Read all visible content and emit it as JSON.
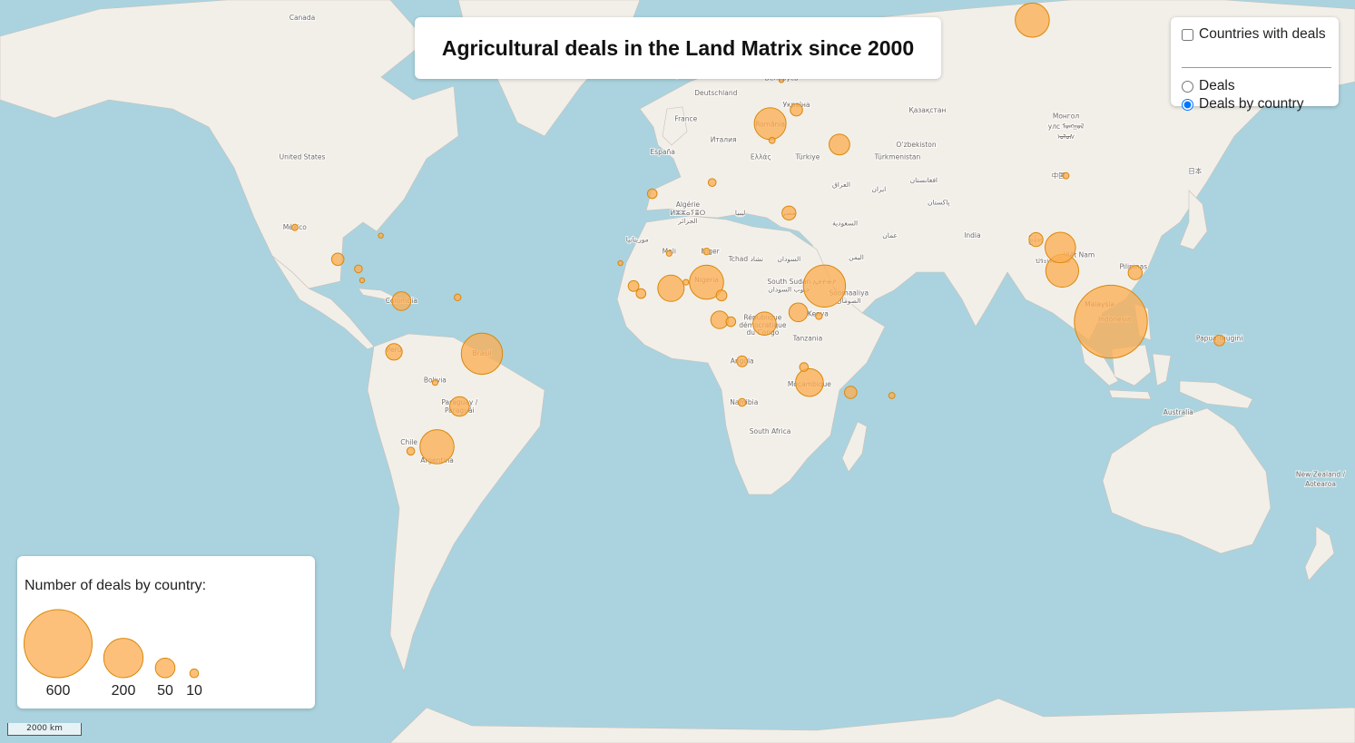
{
  "title": "Agricultural deals in the Land Matrix since 2000",
  "layer_control": {
    "overlay": {
      "label": "Countries with deals",
      "checked": false
    },
    "base_layers": [
      {
        "label": "Deals",
        "selected": false
      },
      {
        "label": "Deals by country",
        "selected": true
      }
    ]
  },
  "legend": {
    "title": "Number of deals by country:",
    "sizes": [
      {
        "value": 600
      },
      {
        "value": 200
      },
      {
        "value": 50
      },
      {
        "value": 10
      }
    ]
  },
  "scale_bar": {
    "label": "2000 km"
  },
  "colors": {
    "ocean": "#aad3df",
    "land": "#f2efe9",
    "bubble_fill": "#fdae55",
    "bubble_stroke": "#d9880a"
  },
  "basemap_labels": [
    {
      "text": "Canada",
      "lon": -100,
      "lat": 62
    },
    {
      "text": "United States",
      "lon": -100,
      "lat": 39
    },
    {
      "text": "México",
      "lon": -102,
      "lat": 23
    },
    {
      "text": "Colombia",
      "lon": -73.5,
      "lat": 4
    },
    {
      "text": "Perú",
      "lon": -75.5,
      "lat": -9
    },
    {
      "text": "Brasil",
      "lon": -52,
      "lat": -10
    },
    {
      "text": "Bolivia",
      "lon": -64.5,
      "lat": -17
    },
    {
      "text": "Paraguay /",
      "lon": -58,
      "lat": -22.5
    },
    {
      "text": "Paraguái",
      "lon": -58,
      "lat": -24.5
    },
    {
      "text": "Chile",
      "lon": -71.5,
      "lat": -32
    },
    {
      "text": "Argentina",
      "lon": -64,
      "lat": -36
    },
    {
      "text": "United Kingdom",
      "lon": -2.5,
      "lat": 54
    },
    {
      "text": "Беларусь",
      "lon": 28,
      "lat": 53.5
    },
    {
      "text": "Deutschland",
      "lon": 10.5,
      "lat": 51
    },
    {
      "text": "Україна",
      "lon": 32,
      "lat": 49
    },
    {
      "text": "France",
      "lon": 2.5,
      "lat": 46.5
    },
    {
      "text": "România",
      "lon": 25,
      "lat": 45.5
    },
    {
      "text": "Италия",
      "lon": 12.5,
      "lat": 42.5
    },
    {
      "text": "España",
      "lon": -3.7,
      "lat": 40
    },
    {
      "text": "Ελλάς",
      "lon": 22.5,
      "lat": 39
    },
    {
      "text": "Türkiye",
      "lon": 35,
      "lat": 39
    },
    {
      "text": "Қазақстан",
      "lon": 67,
      "lat": 48
    },
    {
      "text": "Монгол",
      "lon": 104,
      "lat": 47
    },
    {
      "text": "улс ᠮᠣᠩᠭᠣᠯ",
      "lon": 104,
      "lat": 45
    },
    {
      "text": "ᠤᠯᠤᠰ",
      "lon": 104,
      "lat": 43
    },
    {
      "text": "O‘zbekiston",
      "lon": 64,
      "lat": 41.5
    },
    {
      "text": "Türkmenistan",
      "lon": 59,
      "lat": 39
    },
    {
      "text": "中国",
      "lon": 102,
      "lat": 35
    },
    {
      "text": "日本",
      "lon": 138.5,
      "lat": 36
    },
    {
      "text": "افغانستان",
      "lon": 66,
      "lat": 34
    },
    {
      "text": "العراق",
      "lon": 44,
      "lat": 33
    },
    {
      "text": "ایران",
      "lon": 54,
      "lat": 32
    },
    {
      "text": "پاکستان",
      "lon": 70,
      "lat": 29
    },
    {
      "text": "Algérie",
      "lon": 3,
      "lat": 28.5
    },
    {
      "text": "ⵍⵣⵣⴰⵢⴻⵔ",
      "lon": 3,
      "lat": 26.5
    },
    {
      "text": "الجزائر",
      "lon": 3,
      "lat": 24.5
    },
    {
      "text": "ليبيا",
      "lon": 17,
      "lat": 26.5
    },
    {
      "text": "مصر",
      "lon": 30,
      "lat": 26.5
    },
    {
      "text": "السعودية",
      "lon": 45,
      "lat": 24
    },
    {
      "text": "India",
      "lon": 79,
      "lat": 21
    },
    {
      "text": "موريتانيا",
      "lon": -10.5,
      "lat": 20
    },
    {
      "text": "Mali",
      "lon": -2,
      "lat": 17
    },
    {
      "text": "Niger",
      "lon": 9,
      "lat": 17
    },
    {
      "text": "السودان",
      "lon": 30,
      "lat": 15
    },
    {
      "text": "Tchad تشاد",
      "lon": 18.5,
      "lat": 15
    },
    {
      "text": "عمان",
      "lon": 57,
      "lat": 21
    },
    {
      "text": "اليمن",
      "lon": 48,
      "lat": 15.5
    },
    {
      "text": "Nigeria",
      "lon": 8,
      "lat": 9.5
    },
    {
      "text": "South Sudan",
      "lon": 30,
      "lat": 9
    },
    {
      "text": "جنوب السودان",
      "lon": 30,
      "lat": 7
    },
    {
      "text": "ኢትዮጵያ",
      "lon": 39.5,
      "lat": 9
    },
    {
      "text": "Soomaaliya",
      "lon": 46,
      "lat": 6
    },
    {
      "text": "الصومال",
      "lon": 46,
      "lat": 4
    },
    {
      "text": "République",
      "lon": 23,
      "lat": -0.5
    },
    {
      "text": "démocratique",
      "lon": 23,
      "lat": -2.5
    },
    {
      "text": "du Congo",
      "lon": 23,
      "lat": -4.5
    },
    {
      "text": "Kenya",
      "lon": 37.8,
      "lat": 0.5
    },
    {
      "text": "Tanzania",
      "lon": 35,
      "lat": -6
    },
    {
      "text": "Angola",
      "lon": 17.5,
      "lat": -12
    },
    {
      "text": "Moçambique",
      "lon": 35.5,
      "lat": -18
    },
    {
      "text": "Namibia",
      "lon": 18,
      "lat": -22.5
    },
    {
      "text": "South Africa",
      "lon": 25,
      "lat": -29.5
    },
    {
      "text": "မြန်မာ",
      "lon": 96,
      "lat": 20
    },
    {
      "text": "Việt Nam",
      "lon": 107.5,
      "lat": 16
    },
    {
      "text": "ประเทศไทย",
      "lon": 100.5,
      "lat": 14.5
    },
    {
      "text": "Pilipinas",
      "lon": 122,
      "lat": 13
    },
    {
      "text": "Malaysia",
      "lon": 113,
      "lat": 3
    },
    {
      "text": "Indonesia",
      "lon": 117,
      "lat": -1
    },
    {
      "text": "Papua Niugini",
      "lon": 145,
      "lat": -6
    },
    {
      "text": "Australia",
      "lon": 134,
      "lat": -25
    },
    {
      "text": "New Zealand /",
      "lon": 172,
      "lat": -39
    },
    {
      "text": "Aotearoa",
      "lon": 172,
      "lat": -41
    }
  ],
  "deal_bubbles": [
    {
      "country": "Russia",
      "lon": 95,
      "lat": 62,
      "deals": 150
    },
    {
      "country": "Belarus",
      "lon": 28,
      "lat": 53.5,
      "deals": 3
    },
    {
      "country": "Romania",
      "lon": 25,
      "lat": 46,
      "deals": 130
    },
    {
      "country": "Ukraine",
      "lon": 32,
      "lat": 48.5,
      "deals": 20
    },
    {
      "country": "Bulgaria",
      "lon": 25.5,
      "lat": 42.8,
      "deals": 5
    },
    {
      "country": "Georgia",
      "lon": 43.5,
      "lat": 42,
      "deals": 55
    },
    {
      "country": "China",
      "lon": 104,
      "lat": 35.5,
      "deals": 5
    },
    {
      "country": "Mexico",
      "lon": -102,
      "lat": 23.5,
      "deals": 5
    },
    {
      "country": "Cuba",
      "lon": -79,
      "lat": 21.5,
      "deals": 3
    },
    {
      "country": "Guatemala",
      "lon": -90.5,
      "lat": 15.5,
      "deals": 20
    },
    {
      "country": "Nicaragua",
      "lon": -85,
      "lat": 13,
      "deals": 8
    },
    {
      "country": "Costa Rica",
      "lon": -84,
      "lat": 10,
      "deals": 3
    },
    {
      "country": "Colombia",
      "lon": -73.5,
      "lat": 4.5,
      "deals": 45
    },
    {
      "country": "Guyana",
      "lon": -58.5,
      "lat": 5.5,
      "deals": 6
    },
    {
      "country": "Peru",
      "lon": -75.5,
      "lat": -9,
      "deals": 35
    },
    {
      "country": "Brazil",
      "lon": -52,
      "lat": -9.5,
      "deals": 220
    },
    {
      "country": "Bolivia",
      "lon": -64.5,
      "lat": -17,
      "deals": 4
    },
    {
      "country": "Paraguay",
      "lon": -58,
      "lat": -23,
      "deals": 50
    },
    {
      "country": "Argentina",
      "lon": -64,
      "lat": -32.5,
      "deals": 150
    },
    {
      "country": "Chile",
      "lon": -71,
      "lat": -33.5,
      "deals": 8
    },
    {
      "country": "Morocco",
      "lon": -6.5,
      "lat": 31.5,
      "deals": 12
    },
    {
      "country": "Tunisia",
      "lon": 9.5,
      "lat": 34,
      "deals": 8
    },
    {
      "country": "Egypt",
      "lon": 30,
      "lat": 27,
      "deals": 25
    },
    {
      "country": "Senegal",
      "lon": -15,
      "lat": 14.5,
      "deals": 3
    },
    {
      "country": "Mali",
      "lon": -2,
      "lat": 17,
      "deals": 4
    },
    {
      "country": "Niger",
      "lon": 8,
      "lat": 17.5,
      "deals": 6
    },
    {
      "country": "Sierra Leone",
      "lon": -11.5,
      "lat": 8.5,
      "deals": 15
    },
    {
      "country": "Liberia",
      "lon": -9.5,
      "lat": 6.5,
      "deals": 12
    },
    {
      "country": "Ghana",
      "lon": -1.5,
      "lat": 7.9,
      "deals": 90
    },
    {
      "country": "Benin",
      "lon": 2.5,
      "lat": 9.5,
      "deals": 4
    },
    {
      "country": "Nigeria",
      "lon": 8,
      "lat": 9.5,
      "deals": 150
    },
    {
      "country": "Cameroon",
      "lon": 12,
      "lat": 6,
      "deals": 15
    },
    {
      "country": "Ethiopia",
      "lon": 39.5,
      "lat": 8.5,
      "deals": 230
    },
    {
      "country": "Gabon",
      "lon": 11.5,
      "lat": -0.5,
      "deals": 40
    },
    {
      "country": "Congo",
      "lon": 14.5,
      "lat": -1,
      "deals": 12
    },
    {
      "country": "DR Congo",
      "lon": 23.5,
      "lat": -1.5,
      "deals": 70
    },
    {
      "country": "Uganda",
      "lon": 32.5,
      "lat": 1.5,
      "deals": 45
    },
    {
      "country": "Kenya",
      "lon": 38,
      "lat": 0.5,
      "deals": 6
    },
    {
      "country": "Angola",
      "lon": 17.5,
      "lat": -11.5,
      "deals": 15
    },
    {
      "country": "Malawi",
      "lon": 34,
      "lat": -13,
      "deals": 10
    },
    {
      "country": "Mozambique",
      "lon": 35.5,
      "lat": -17,
      "deals": 100
    },
    {
      "country": "Namibia",
      "lon": 17.5,
      "lat": -22,
      "deals": 8
    },
    {
      "country": "Madagascar",
      "lon": 46.5,
      "lat": -19.5,
      "deals": 20
    },
    {
      "country": "Mauritius",
      "lon": 57.5,
      "lat": -20.3,
      "deals": 5
    },
    {
      "country": "Myanmar",
      "lon": 96,
      "lat": 20.5,
      "deals": 25
    },
    {
      "country": "Laos",
      "lon": 102.5,
      "lat": 18.5,
      "deals": 120
    },
    {
      "country": "Cambodia",
      "lon": 103,
      "lat": 12.5,
      "deals": 140
    },
    {
      "country": "Philippines",
      "lon": 122.5,
      "lat": 12,
      "deals": 25
    },
    {
      "country": "Indonesia",
      "lon": 116,
      "lat": -1,
      "deals": 690
    },
    {
      "country": "Papua New Guinea",
      "lon": 145,
      "lat": -6,
      "deals": 15
    }
  ]
}
